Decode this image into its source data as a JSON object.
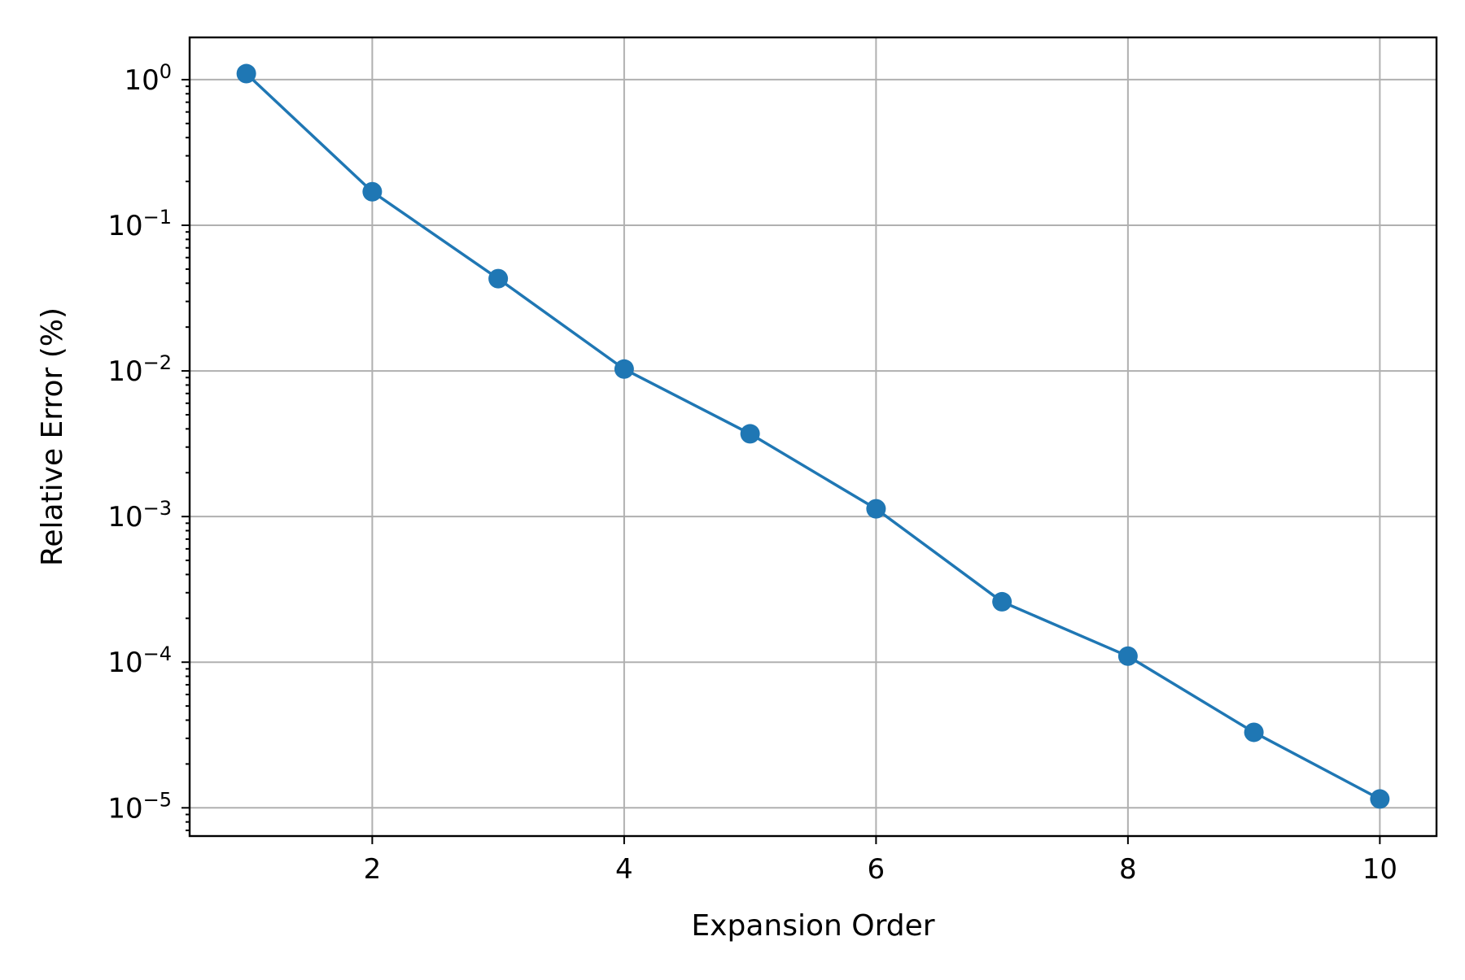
{
  "chart_data": {
    "type": "line",
    "xlabel": "Expansion Order",
    "ylabel": "Relative Error (%)",
    "xlim": [
      0.55,
      10.45
    ],
    "ylim": [
      6.4e-06,
      1.95
    ],
    "y_scale": "log",
    "grid": true,
    "x_ticks": [
      2,
      4,
      6,
      8,
      10
    ],
    "x_tick_labels": [
      "2",
      "4",
      "6",
      "8",
      "10"
    ],
    "y_ticks": [
      1,
      0.1,
      0.01,
      0.001,
      0.0001,
      1e-05
    ],
    "y_tick_labels": [
      {
        "base": "10",
        "exp": "0"
      },
      {
        "base": "10",
        "exp": "−1"
      },
      {
        "base": "10",
        "exp": "−2"
      },
      {
        "base": "10",
        "exp": "−3"
      },
      {
        "base": "10",
        "exp": "−4"
      },
      {
        "base": "10",
        "exp": "−5"
      }
    ],
    "series": [
      {
        "color": "#1f77b4",
        "marker": "circle",
        "x": [
          1,
          2,
          3,
          4,
          5,
          6,
          7,
          8,
          9,
          10
        ],
        "y": [
          1.1,
          0.17,
          0.043,
          0.0103,
          0.0037,
          0.00113,
          0.00026,
          0.00011,
          3.3e-05,
          1.15e-05
        ]
      }
    ]
  }
}
